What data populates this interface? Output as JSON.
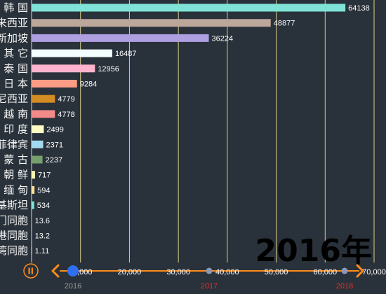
{
  "colors": {
    "background": "#29313a",
    "grid": "#d9cf8a",
    "axis": "#ff8c1a",
    "timeline_past": "#8c98b8",
    "timeline_current": "#2f6ff0",
    "timeline_future_label": "#e0302a",
    "timeline_past_label": "#9a9a9a"
  },
  "chart_data": {
    "type": "bar",
    "orientation": "horizontal",
    "title": "",
    "xlim": [
      0,
      70000
    ],
    "x_ticks": [
      "10,000",
      "20,000",
      "30,000",
      "40,000",
      "50,000",
      "60,000",
      "70,000"
    ],
    "categories": [
      "韩 国",
      "来西亚",
      "新加坡",
      "其 它",
      "泰 国",
      "日 本",
      "尼西亚",
      "越 南",
      "印 度",
      "菲律宾",
      "蒙 古",
      "朝 鲜",
      "缅 甸",
      "基斯坦",
      "澳门同胞",
      "香港同胞",
      "台湾同胞"
    ],
    "values": [
      64138,
      48877,
      36224,
      16487,
      12956,
      9284,
      4779,
      4778,
      2499,
      2371,
      2237,
      717,
      594,
      534,
      13.6,
      13.2,
      1.11
    ],
    "value_labels": [
      "64138",
      "48877",
      "36224",
      "16487",
      "12956",
      "9284",
      "4779",
      "4778",
      "2499",
      "2371",
      "2237",
      "717",
      "594",
      "534",
      "13.6",
      "13.2",
      "1.11"
    ],
    "bar_colors": [
      "#7fe3d7",
      "#bca79b",
      "#ae9fe0",
      "#f2fffe",
      "#ffb3cc",
      "#ff9c85",
      "#d38c24",
      "#f28a8a",
      "#fffbc4",
      "#a3d8f0",
      "#789e6e",
      "#fff3b3",
      "#ffde99",
      "#7fe3d7",
      "#bca79b",
      "#ae9fe0",
      "#f2fffe"
    ],
    "grid": true,
    "current_year": "2016年"
  },
  "timeline": {
    "years": [
      "2016",
      "2017",
      "2018"
    ],
    "current_index": 0,
    "play_icon": "play-pause-icon",
    "prev_icon": "chevron-left-icon",
    "next_icon": "chevron-right-icon"
  }
}
